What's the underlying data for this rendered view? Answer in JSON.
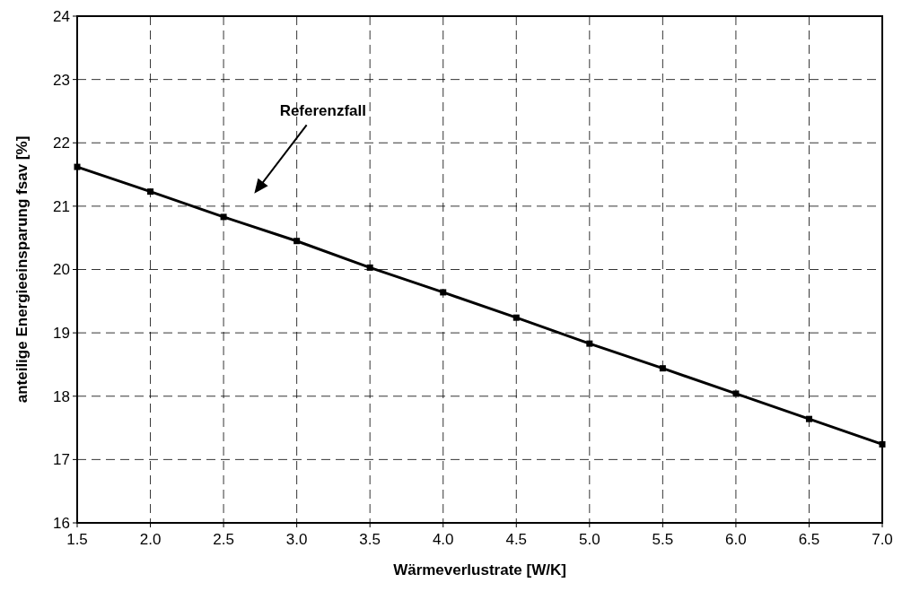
{
  "chart_data": {
    "type": "line",
    "xlabel": "Wärmeverlustrate [W/K]",
    "ylabel": "anteilige Energieeinsparung fsav [%]",
    "x": [
      1.5,
      2.0,
      2.5,
      3.0,
      3.5,
      4.0,
      4.5,
      5.0,
      5.5,
      6.0,
      6.5,
      7.0
    ],
    "series": [
      {
        "color": "#000000",
        "values": [
          21.62,
          21.23,
          20.83,
          20.45,
          20.03,
          19.64,
          19.24,
          18.83,
          18.44,
          18.04,
          17.64,
          17.24
        ]
      }
    ],
    "xlim": [
      1.5,
      7.0
    ],
    "xticks": [
      {
        "value": 1.5,
        "label": "1.5"
      },
      {
        "value": 2,
        "label": "2.0"
      },
      {
        "value": 2.5,
        "label": "2.5"
      },
      {
        "value": 3,
        "label": "3.0"
      },
      {
        "value": 3.5,
        "label": "3.5"
      },
      {
        "value": 4,
        "label": "4.0"
      },
      {
        "value": 4.5,
        "label": "4.5"
      },
      {
        "value": 5,
        "label": "5.0"
      },
      {
        "value": 5.5,
        "label": "5.5"
      },
      {
        "value": 6,
        "label": "6.0"
      },
      {
        "value": 6.5,
        "label": "6.5"
      },
      {
        "value": 7,
        "label": "7.0"
      }
    ],
    "ylim": [
      16,
      24
    ],
    "yticks": [
      16,
      17,
      18,
      19,
      20,
      21,
      22,
      23,
      24
    ],
    "grid": true,
    "marker": "square",
    "line_style": "solid",
    "annotations": [
      "Referenzfall"
    ]
  }
}
